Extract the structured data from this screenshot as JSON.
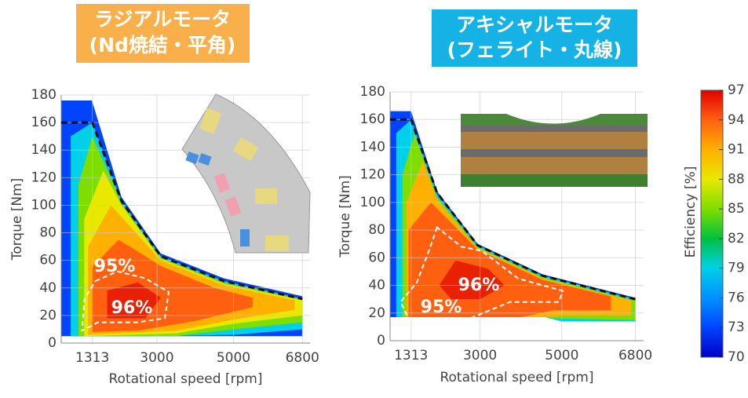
{
  "chart_data": [
    {
      "type": "contour",
      "title": "ラジアルモータ",
      "subtitle": "(Nd焼結・平角)",
      "x_label": "Rotational speed [rpm]",
      "y_label": "Torque [Nm]",
      "xlim": [
        500,
        7000
      ],
      "xticks": [
        1313,
        3000,
        5000,
        6800
      ],
      "ylim": [
        0,
        180
      ],
      "yticks": [
        0,
        20,
        40,
        60,
        80,
        100,
        120,
        140,
        160,
        180
      ],
      "grid": true,
      "title_color": "#f9b04a",
      "regions": [
        {
          "level": 73,
          "x": [
            500,
            500,
            1300,
            2074,
            3100,
            4745,
            6800,
            6800
          ],
          "y": [
            5,
            176,
            176,
            106,
            65,
            47,
            34,
            5
          ]
        },
        {
          "level": 79,
          "x": [
            750,
            750,
            1313,
            2074,
            3100,
            4745,
            6800,
            6800,
            5000,
            3000
          ],
          "y": [
            5,
            150,
            160,
            103,
            63,
            45,
            32,
            10,
            6,
            5
          ]
        },
        {
          "level": 85,
          "x": [
            950,
            950,
            1313,
            2074,
            3100,
            4745,
            6800,
            6800,
            5000,
            3500
          ],
          "y": [
            5,
            115,
            150,
            102,
            62,
            44,
            32,
            15,
            10,
            5
          ]
        },
        {
          "level": 88,
          "x": [
            1100,
            1100,
            1600,
            2074,
            3100,
            4745,
            6800,
            6800,
            5000,
            3500
          ],
          "y": [
            5,
            90,
            125,
            100,
            61,
            43,
            31,
            20,
            14,
            7
          ]
        },
        {
          "level": 91,
          "x": [
            1200,
            1200,
            1800,
            3100,
            4745,
            6600,
            6600,
            5000,
            3500
          ],
          "y": [
            6,
            70,
            100,
            60,
            42,
            31,
            24,
            17,
            9
          ]
        },
        {
          "level": 94,
          "x": [
            1300,
            1300,
            2000,
            3100,
            4500,
            5500,
            5500,
            4000,
            2500
          ],
          "y": [
            8,
            55,
            75,
            56,
            40,
            33,
            26,
            16,
            9
          ]
        },
        {
          "level": 96,
          "x": [
            1700,
            1700,
            2500,
            3100,
            2700
          ],
          "y": [
            18,
            38,
            44,
            33,
            18
          ]
        }
      ],
      "envelope": {
        "x": [
          500,
          1313,
          2074,
          3100,
          4745,
          6800
        ],
        "y": [
          160,
          160,
          103,
          63,
          45,
          32
        ]
      },
      "contour": {
        "x": [
          1395,
          1971,
          2692,
          3309,
          3206,
          2486,
          1457,
          1045,
          1107
        ],
        "y": [
          45,
          52,
          47,
          37,
          18,
          15,
          15,
          9,
          32
        ]
      },
      "annotations": [
        "95%",
        "96%"
      ]
    },
    {
      "type": "contour",
      "title": "アキシャルモータ",
      "subtitle": "(フェライト・丸線)",
      "x_label": "Rotational speed [rpm]",
      "y_label": "Torque [Nm]",
      "xlim": [
        800,
        7000
      ],
      "xticks": [
        1313,
        3000,
        5000,
        6800
      ],
      "ylim": [
        0,
        180
      ],
      "yticks": [
        0,
        20,
        40,
        60,
        80,
        100,
        120,
        140,
        160,
        180
      ],
      "grid": true,
      "title_color": "#15b2e6",
      "regions": [
        {
          "level": 73,
          "x": [
            800,
            800,
            1313,
            1948,
            2940,
            4530,
            6800,
            6800,
            5000,
            4600
          ],
          "y": [
            17,
            166,
            166,
            108,
            70,
            48,
            31,
            14,
            14,
            17
          ]
        },
        {
          "level": 79,
          "x": [
            950,
            950,
            1313,
            1948,
            2940,
            4530,
            6800,
            6800,
            5000,
            4600
          ],
          "y": [
            17,
            150,
            160,
            106,
            69,
            47,
            30,
            14,
            14,
            17
          ]
        },
        {
          "level": 85,
          "x": [
            1100,
            1100,
            1400,
            1948,
            2940,
            4530,
            6800,
            6800,
            5000,
            4600
          ],
          "y": [
            17,
            120,
            150,
            104,
            68,
            46,
            29,
            15,
            16,
            17
          ]
        },
        {
          "level": 91,
          "x": [
            1200,
            1200,
            1600,
            1948,
            2940,
            4530,
            6700,
            6700,
            5000,
            4500
          ],
          "y": [
            17,
            100,
            130,
            102,
            67,
            45,
            29,
            18,
            18,
            17
          ]
        },
        {
          "level": 94,
          "x": [
            1250,
            1250,
            1800,
            2940,
            4530,
            6200,
            6200,
            4800,
            4000
          ],
          "y": [
            17,
            80,
            100,
            66,
            44,
            32,
            22,
            22,
            17
          ]
        },
        {
          "level": 96,
          "x": [
            2000,
            2400,
            3200,
            3600,
            3000,
            2300
          ],
          "y": [
            40,
            58,
            52,
            40,
            30,
            30
          ]
        }
      ],
      "envelope": {
        "x": [
          800,
          1313,
          1948,
          2940,
          4530,
          6800
        ],
        "y": [
          160,
          160,
          107,
          69,
          47,
          30
        ]
      },
      "contour": {
        "x": [
          1948,
          1750,
          1452,
          1055,
          1253,
          2742,
          3734,
          4924,
          5023,
          3932,
          3039,
          2543
        ],
        "y": [
          82,
          65,
          42,
          28,
          16,
          16,
          28,
          28,
          36,
          45,
          65,
          68
        ]
      },
      "annotations": [
        "96%",
        "95%"
      ]
    },
    {
      "type": "colorbar",
      "label": "Efficiency [%]",
      "ylim": [
        70,
        97
      ],
      "yticks": [
        70,
        73,
        76,
        79,
        82,
        85,
        88,
        91,
        94,
        97
      ],
      "colors": [
        "#0000c8",
        "#0044ff",
        "#0090ff",
        "#00d0e8",
        "#00c040",
        "#7ede00",
        "#e8e800",
        "#ffb000",
        "#ff6010",
        "#e00000"
      ]
    }
  ]
}
